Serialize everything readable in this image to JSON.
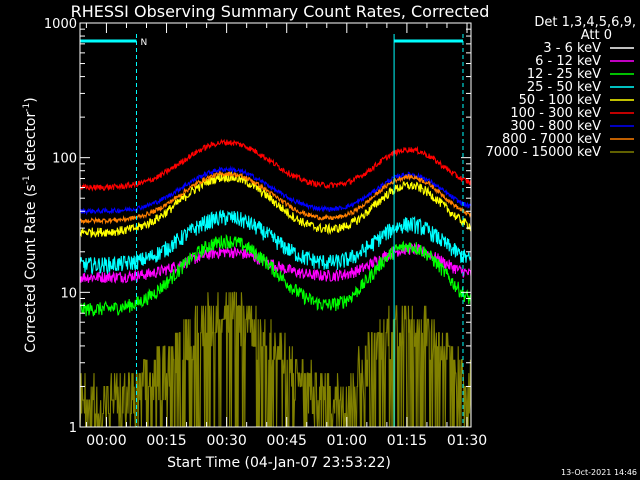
{
  "chart_data": {
    "type": "line",
    "title": "RHESSI Observing Summary Count Rates, Corrected",
    "xlabel": "Start Time (04-Jan-07 23:53:22)",
    "ylabel_main": "Corrected Count Rate (s",
    "ylabel_sup1": "-1",
    "ylabel_mid": " detector",
    "ylabel_sup2": "-1",
    "ylabel_end": ")",
    "yscale": "log",
    "ylim": [
      1,
      1000
    ],
    "xlim_minutes": [
      -6.6,
      91.0
    ],
    "yticks": [
      {
        "v": 1,
        "label": "1"
      },
      {
        "v": 10,
        "label": "10"
      },
      {
        "v": 100,
        "label": "100"
      },
      {
        "v": 1000,
        "label": "1000"
      }
    ],
    "xticks": [
      {
        "m": 0,
        "label": "00:00"
      },
      {
        "m": 15,
        "label": "00:15"
      },
      {
        "m": 30,
        "label": "00:30"
      },
      {
        "m": 45,
        "label": "00:45"
      },
      {
        "m": 60,
        "label": "01:00"
      },
      {
        "m": 75,
        "label": "01:15"
      },
      {
        "m": 90,
        "label": "01:30"
      }
    ],
    "legend_header": [
      "Det 1,3,4,5,6,9,",
      "Att 0"
    ],
    "legend_placement": "right",
    "timestamp": "13-Oct-2021 14:46",
    "series": [
      {
        "name": "3 - 6 keV",
        "color": "#000000",
        "base": 3.5,
        "peak1": 16,
        "peak2": 15,
        "noise": 0.3,
        "step": 0
      },
      {
        "name": "6 - 12 keV",
        "color": "#ff00ff",
        "base": 13,
        "peak1": 20,
        "peak2": 21,
        "noise": 0.1,
        "step": 0
      },
      {
        "name": "12 - 25 keV",
        "color": "#00ff00",
        "base": 7.5,
        "peak1": 24,
        "peak2": 22,
        "noise": 0.12,
        "step": 0
      },
      {
        "name": "25 - 50 keV",
        "color": "#00ffff",
        "base": 16,
        "peak1": 36,
        "peak2": 32,
        "noise": 0.14,
        "step": 0
      },
      {
        "name": "50 - 100 keV",
        "color": "#ffff00",
        "base": 28,
        "peak1": 72,
        "peak2": 62,
        "noise": 0.08,
        "step": 0
      },
      {
        "name": "100 - 300 keV",
        "color": "#ff0000",
        "base": 60,
        "peak1": 130,
        "peak2": 115,
        "noise": 0.05,
        "step": 0
      },
      {
        "name": "300 - 800 keV",
        "color": "#0000ff",
        "base": 40,
        "peak1": 82,
        "peak2": 75,
        "noise": 0.04,
        "step": 0
      },
      {
        "name": "800 - 7000 keV",
        "color": "#ff7f00",
        "base": 34,
        "peak1": 76,
        "peak2": 72,
        "noise": 0.04,
        "step": 0
      },
      {
        "name": "7000 - 15000 keV",
        "color": "#808000",
        "base": 1.6,
        "peak1": 7.5,
        "peak2": 6.5,
        "noise": 0.45,
        "step": 1
      }
    ],
    "night_intervals_minutes": [
      [
        -6.6,
        7.5
      ],
      [
        71.8,
        89.0
      ]
    ],
    "saa_label": "N"
  }
}
